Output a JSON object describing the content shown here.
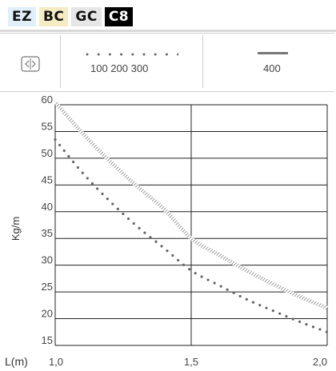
{
  "tabs": [
    {
      "label": "EZ"
    },
    {
      "label": "BC"
    },
    {
      "label": "GC"
    },
    {
      "label": "C8"
    }
  ],
  "legend": {
    "icon": "arrows-left-right-icon",
    "dotted_label": "100  200  300",
    "solid_label": "400"
  },
  "chart_data": {
    "type": "line",
    "xlabel": "L(m)",
    "ylabel": "Kg/m",
    "xlim": [
      1.0,
      2.0
    ],
    "ylim": [
      15,
      60
    ],
    "x_ticks": [
      "1,0",
      "1,5",
      "2,0"
    ],
    "y_ticks": [
      "15",
      "20",
      "25",
      "30",
      "35",
      "40",
      "45",
      "50",
      "55",
      "60"
    ],
    "grid": true,
    "series": [
      {
        "name": "400",
        "style": "hatched",
        "x": [
          1.0,
          1.1,
          1.2,
          1.3,
          1.4,
          1.5,
          1.6,
          1.7,
          1.8,
          1.9,
          2.0
        ],
        "y": [
          60.5,
          54.7,
          49.5,
          44.8,
          40.5,
          35.0,
          32.0,
          29.1,
          26.5,
          24.1,
          22.0
        ]
      },
      {
        "name": "100  200  300",
        "style": "dotted",
        "x": [
          1.0,
          1.1,
          1.2,
          1.3,
          1.4,
          1.5,
          1.6,
          1.7,
          1.8,
          1.9,
          2.0
        ],
        "y": [
          53.5,
          47.3,
          42.0,
          37.3,
          33.2,
          29.0,
          26.3,
          23.7,
          21.5,
          19.4,
          17.5
        ]
      }
    ]
  }
}
